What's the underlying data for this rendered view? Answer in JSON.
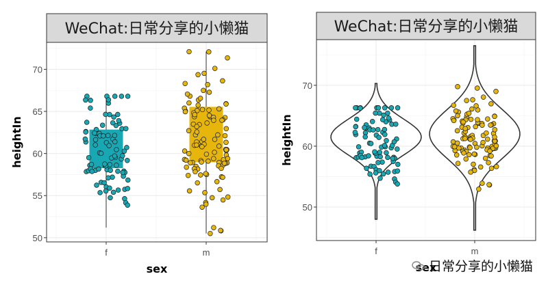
{
  "chart_data": [
    {
      "type": "boxplot",
      "title": "WeChat:日常分享的小懒猫",
      "xlabel": "sex",
      "ylabel": "heightIn",
      "categories": [
        "f",
        "m"
      ],
      "ylim": [
        49.5,
        73.2
      ],
      "yticks": [
        50,
        55,
        60,
        65,
        70
      ],
      "grid": true,
      "legend": "none",
      "box_stats": [
        {
          "category": "f",
          "min": 51.2,
          "q1": 58.3,
          "median": 61.0,
          "q3": 62.8,
          "max": 66.8
        },
        {
          "category": "m",
          "min": 50.5,
          "q1": 59.0,
          "median": 62.0,
          "q3": 65.5,
          "max": 72.1
        }
      ],
      "jitter_counts": [
        90,
        110
      ]
    },
    {
      "type": "violin",
      "title": "WeChat:日常分享的小懒猫",
      "xlabel": "sex",
      "ylabel": "heightIn",
      "categories": [
        "f",
        "m"
      ],
      "ylim": [
        44.5,
        77.5
      ],
      "yticks": [
        50,
        60,
        70
      ],
      "grid": true,
      "legend": "none",
      "violin_range": [
        {
          "category": "f",
          "min": 48.0,
          "max": 70.3,
          "mode": 61.5
        },
        {
          "category": "m",
          "min": 46.2,
          "max": 76.5,
          "mode": 62.0
        }
      ],
      "jitter_counts": [
        90,
        110
      ]
    }
  ],
  "colors": {
    "f": "#18a8b4",
    "m": "#e6b60c",
    "panel_border": "#333333",
    "strip_fill": "#d9d9d9",
    "grid_major": "#ebebeb",
    "grid_minor": "#f5f5f5"
  },
  "watermark": {
    "text": "日常分享的小懒猫",
    "icon": "wechat-icon"
  }
}
